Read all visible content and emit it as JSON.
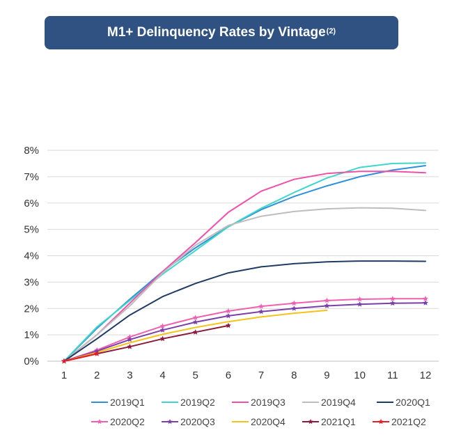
{
  "header": {
    "title": "M1+ Delinquency Rates by Vintage",
    "title_sup": "(2)"
  },
  "chart_data": {
    "type": "line",
    "title": "M1+ Delinquency Rates by Vintage",
    "xlabel": "",
    "ylabel": "",
    "x_ticks": [
      "1",
      "2",
      "3",
      "4",
      "5",
      "6",
      "7",
      "8",
      "9",
      "10",
      "11",
      "12"
    ],
    "y_ticks": [
      "0%",
      "1%",
      "2%",
      "3%",
      "4%",
      "5%",
      "6%",
      "7%",
      "8%"
    ],
    "xlim": [
      1,
      12
    ],
    "ylim": [
      0,
      8
    ],
    "grid": "horizontal",
    "legend_position": "bottom",
    "series": [
      {
        "name": "2019Q1",
        "color": "#2f8fd8",
        "marker": "none",
        "x": [
          1,
          2,
          3,
          4,
          5,
          6,
          7,
          8,
          9,
          10,
          11,
          12
        ],
        "y": [
          0,
          1.25,
          2.35,
          3.4,
          4.3,
          5.1,
          5.75,
          6.25,
          6.65,
          7.0,
          7.25,
          7.42
        ]
      },
      {
        "name": "2019Q2",
        "color": "#3fd6cc",
        "marker": "none",
        "x": [
          1,
          2,
          3,
          4,
          5,
          6,
          7,
          8,
          9,
          10,
          11,
          12
        ],
        "y": [
          0,
          1.3,
          2.3,
          3.3,
          4.2,
          5.1,
          5.8,
          6.4,
          6.95,
          7.35,
          7.5,
          7.52
        ]
      },
      {
        "name": "2019Q3",
        "color": "#f050a8",
        "marker": "none",
        "x": [
          1,
          2,
          3,
          4,
          5,
          6,
          7,
          8,
          9,
          10,
          11,
          12
        ],
        "y": [
          0,
          1.0,
          2.2,
          3.4,
          4.5,
          5.65,
          6.45,
          6.9,
          7.12,
          7.2,
          7.2,
          7.15
        ]
      },
      {
        "name": "2019Q4",
        "color": "#bdbdbd",
        "marker": "none",
        "x": [
          1,
          2,
          3,
          4,
          5,
          6,
          7,
          8,
          9,
          10,
          11,
          12
        ],
        "y": [
          0,
          1.0,
          2.1,
          3.35,
          4.4,
          5.15,
          5.5,
          5.68,
          5.78,
          5.82,
          5.8,
          5.72
        ]
      },
      {
        "name": "2020Q1",
        "color": "#1f3b64",
        "marker": "none",
        "x": [
          1,
          2,
          3,
          4,
          5,
          6,
          7,
          8,
          9,
          10,
          11,
          12
        ],
        "y": [
          0,
          0.85,
          1.75,
          2.45,
          2.95,
          3.35,
          3.58,
          3.7,
          3.77,
          3.8,
          3.8,
          3.79
        ]
      },
      {
        "name": "2020Q2",
        "color": "#f060b0",
        "marker": "star",
        "x": [
          1,
          2,
          3,
          4,
          5,
          6,
          7,
          8,
          9,
          10,
          11,
          12
        ],
        "y": [
          0,
          0.42,
          0.92,
          1.33,
          1.65,
          1.9,
          2.08,
          2.2,
          2.3,
          2.35,
          2.37,
          2.37
        ]
      },
      {
        "name": "2020Q3",
        "color": "#7a3fa8",
        "marker": "star",
        "x": [
          1,
          2,
          3,
          4,
          5,
          6,
          7,
          8,
          9,
          10,
          11,
          12
        ],
        "y": [
          0,
          0.38,
          0.82,
          1.18,
          1.48,
          1.72,
          1.88,
          2.0,
          2.1,
          2.16,
          2.2,
          2.21
        ]
      },
      {
        "name": "2020Q4",
        "color": "#f5c21a",
        "marker": "none",
        "x": [
          1,
          2,
          3,
          4,
          5,
          6,
          7,
          8,
          9
        ],
        "y": [
          0,
          0.33,
          0.7,
          1.02,
          1.28,
          1.5,
          1.68,
          1.82,
          1.93
        ]
      },
      {
        "name": "2021Q1",
        "color": "#8b1a3c",
        "marker": "star",
        "x": [
          1,
          2,
          3,
          4,
          5,
          6
        ],
        "y": [
          0,
          0.28,
          0.55,
          0.85,
          1.1,
          1.35
        ]
      },
      {
        "name": "2021Q2",
        "color": "#e41e26",
        "marker": "star",
        "x": [
          1,
          2
        ],
        "y": [
          0,
          0.28
        ]
      }
    ]
  }
}
